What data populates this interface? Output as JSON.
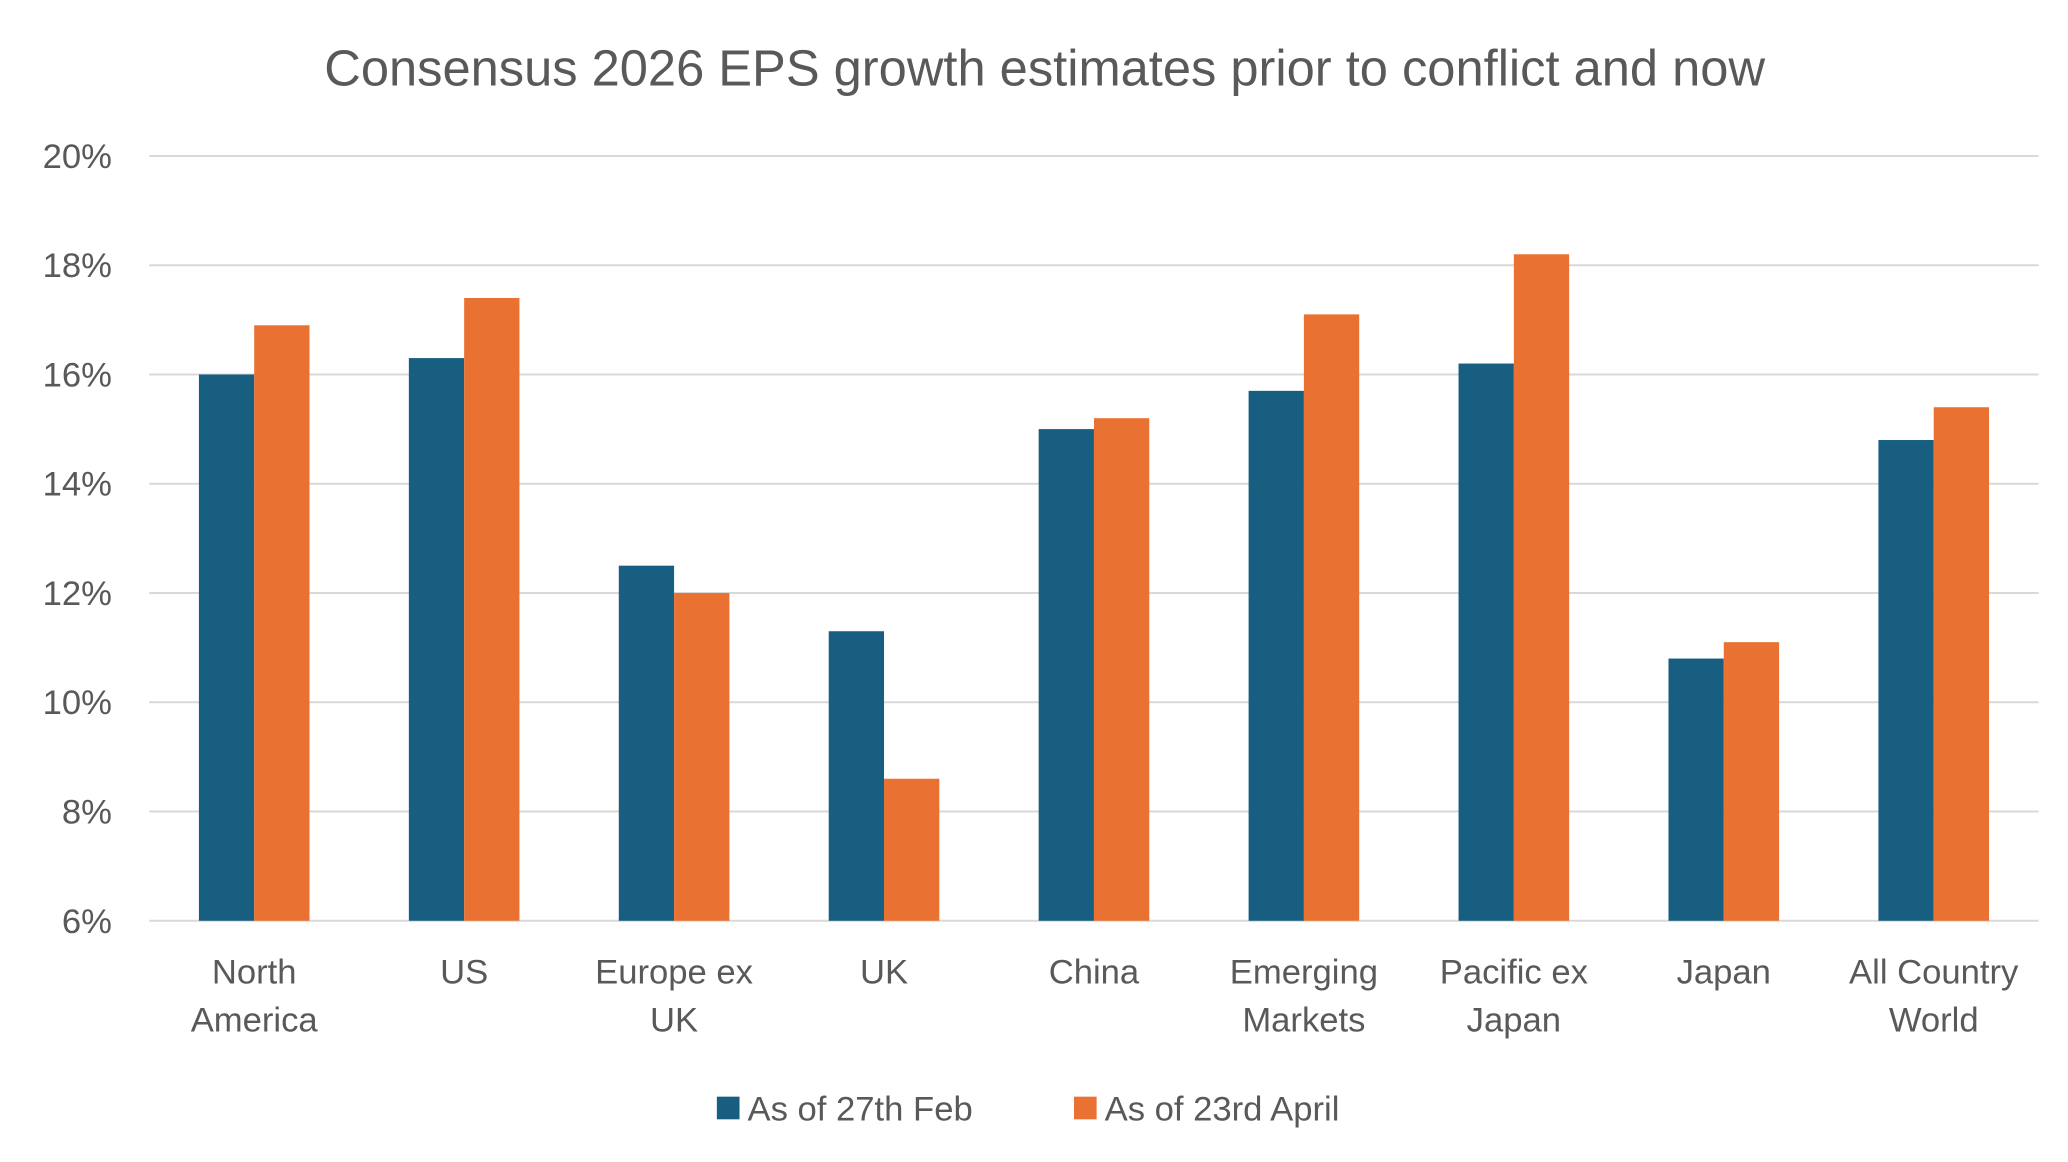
{
  "chart_data": {
    "type": "bar",
    "title": "Consensus 2026 EPS growth estimates prior to conflict and now",
    "xlabel": "",
    "ylabel": "",
    "ylim": [
      6,
      20
    ],
    "yticks": [
      "6%",
      "8%",
      "10%",
      "12%",
      "14%",
      "16%",
      "18%",
      "20%"
    ],
    "grid": true,
    "legend_position": "bottom",
    "categories": [
      [
        "North",
        "America"
      ],
      [
        "US"
      ],
      [
        "Europe ex",
        "UK"
      ],
      [
        "UK"
      ],
      [
        "China"
      ],
      [
        "Emerging",
        "Markets"
      ],
      [
        "Pacific ex",
        "Japan"
      ],
      [
        "Japan"
      ],
      [
        "All Country",
        "World"
      ]
    ],
    "series": [
      {
        "name": "As of 27th Feb",
        "color": "#175E80",
        "values": [
          16.0,
          16.3,
          12.5,
          11.3,
          15.0,
          15.7,
          16.2,
          10.8,
          14.8
        ]
      },
      {
        "name": "As of 23rd April",
        "color": "#E97132",
        "values": [
          16.9,
          17.4,
          12.0,
          8.6,
          15.2,
          17.1,
          18.2,
          11.1,
          15.4
        ]
      }
    ]
  }
}
